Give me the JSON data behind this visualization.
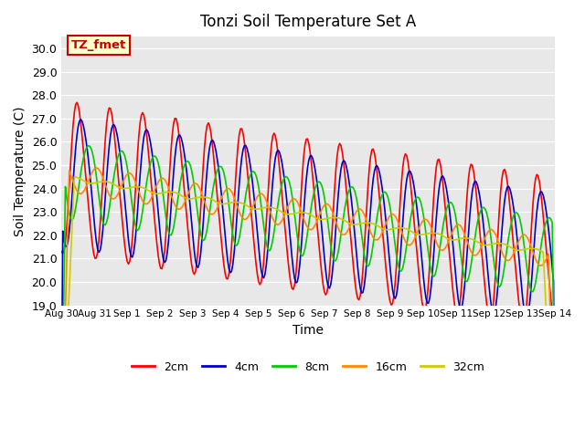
{
  "title": "Tonzi Soil Temperature Set A",
  "xlabel": "Time",
  "ylabel": "Soil Temperature (C)",
  "ylim": [
    19.0,
    30.5
  ],
  "yticks": [
    19.0,
    20.0,
    21.0,
    22.0,
    23.0,
    24.0,
    25.0,
    26.0,
    27.0,
    28.0,
    29.0,
    30.0
  ],
  "xtick_labels": [
    "Aug 30",
    "Aug 31",
    "Sep 1",
    "Sep 2",
    "Sep 3",
    "Sep 4",
    "Sep 5",
    "Sep 6",
    "Sep 7",
    "Sep 8",
    "Sep 9",
    "Sep 10",
    "Sep 11",
    "Sep 12",
    "Sep 13",
    "Sep 14"
  ],
  "series_colors": [
    "#ff0000",
    "#0000cc",
    "#00cc00",
    "#ff8800",
    "#cccc00"
  ],
  "series_labels": [
    "2cm",
    "4cm",
    "8cm",
    "16cm",
    "32cm"
  ],
  "annotation_text": "TZ_fmet",
  "annotation_bg": "#ffffcc",
  "annotation_fg": "#cc0000",
  "bg_color": "#e8e8e8",
  "n_days": 16,
  "samples_per_day": 24,
  "base_temp": 24.5,
  "trend": -0.22,
  "amplitudes": [
    3.2,
    2.8,
    1.8,
    0.9,
    0.35
  ],
  "phase_shifts": [
    0.0,
    0.12,
    0.3,
    0.55,
    0.85
  ],
  "smooth_sizes": [
    1,
    3,
    6,
    12,
    20
  ],
  "linewidth": 1.2
}
